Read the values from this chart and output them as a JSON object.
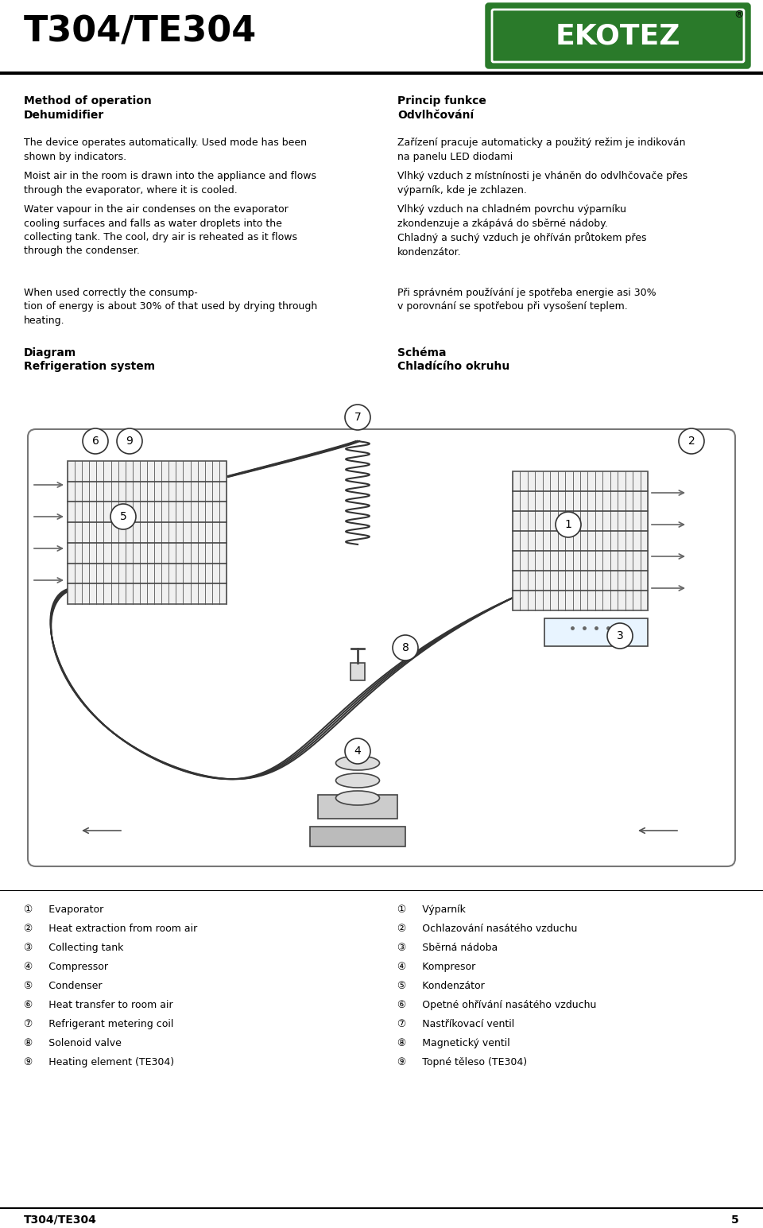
{
  "title": "T304/TE304",
  "page_num": "5",
  "bg_color": "#ffffff",
  "text_color": "#000000",
  "logo_green": "#2a7a2a",
  "logo_text": "EKOTEZ",
  "method_header": "Method of operation",
  "method_subheader": "Dehumidifier",
  "princip_header": "Princip funkce",
  "princip_subheader": "Odvlhčování",
  "method_para1": "The device operates automatically. Used mode has been\nshown by indicators.",
  "method_para2": "Moist air in the room is drawn into the appliance and flows\nthrough the evaporator, where it is cooled.",
  "method_para3": "Water vapour in the air condenses on the evaporator\ncooling surfaces and falls as water droplets into the\ncollecting tank. The cool, dry air is reheated as it flows\nthrough the condenser.",
  "princip_para1": "Zařízení pracuje automaticky a použitý režim je indikován\nna panelu LED diodami",
  "princip_para2": "Vlhký vzduch z místnínosti je vháněn do odvlhčovače přes\nvýparník, kde je zchlazen.",
  "princip_para3": "Vlhký vzduch na chladném povrchu výparníku\nzkondenzuje a zkápává do sběrné nádoby.\nChladný a suchý vzduch je ohříván průtokem přes\nkondenzátor.",
  "consumption_en": "When used correctly the consump-\ntion of energy is about 30% of that used by drying through\nheating.",
  "consumption_cz": "Při správném používání je spotřeba energie asi 30%\nv porovnání se spotřebou při vysošení teplem.",
  "diagram_en_1": "Diagram",
  "diagram_en_2": "Refrigeration system",
  "diagram_cz_1": "Schéma",
  "diagram_cz_2": "Chladícího okruhu",
  "legend_en": [
    "①     Evaporator",
    "②     Heat extraction from room air",
    "③     Collecting tank",
    "④     Compressor",
    "⑤     Condenser",
    "⑥     Heat transfer to room air",
    "⑦     Refrigerant metering coil",
    "⑧     Solenoid valve",
    "⑨     Heating element (TE304)"
  ],
  "legend_cz": [
    "①     Výparník",
    "②     Ochlazování nasátého vzduchu",
    "③     Sběrná nádoba",
    "④     Kompresor",
    "⑤     Kondenzátor",
    "⑥     Opetné ohřívání nasátého vzduchu",
    "⑦     Nastříkovací ventil",
    "⑧     Magnetický ventil",
    "⑨     Topné těleso (TE304)"
  ],
  "footer_title": "T304/TE304",
  "footer_page": "5"
}
